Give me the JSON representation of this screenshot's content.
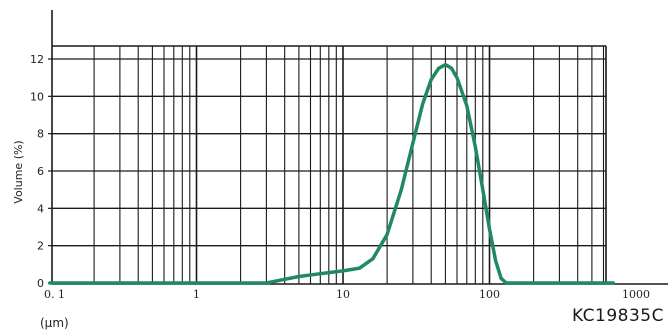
{
  "chart_data": {
    "type": "line",
    "title": "",
    "ylabel": "Volume (%)",
    "xunit": "(μm)",
    "annotation": "KC19835C",
    "x_scale": "log",
    "xlim": [
      0.1,
      1000
    ],
    "ylim": [
      0,
      12
    ],
    "grid": true,
    "line_color": "#1f8a5f",
    "axis_color": "#1a1a1a",
    "x_tick_labels": [
      {
        "value": 0.1,
        "label": "0. 1"
      },
      {
        "value": 1,
        "label": "1"
      },
      {
        "value": 10,
        "label": "10"
      },
      {
        "value": 100,
        "label": "100"
      },
      {
        "value": 1000,
        "label": "1000"
      }
    ],
    "y_ticks": [
      0,
      2,
      4,
      6,
      8,
      10,
      12
    ],
    "series": [
      {
        "x": [
          0.1,
          1,
          3,
          4,
          5,
          7,
          10,
          13,
          16,
          20,
          25,
          30,
          35,
          40,
          45,
          50,
          55,
          60,
          70,
          80,
          90,
          100,
          110,
          120,
          130,
          140,
          160,
          200,
          300,
          500,
          700
        ],
        "y": [
          0,
          0,
          0,
          0.2,
          0.35,
          0.5,
          0.65,
          0.8,
          1.3,
          2.6,
          5.0,
          7.5,
          9.6,
          10.9,
          11.5,
          11.7,
          11.5,
          11.0,
          9.5,
          7.3,
          5.0,
          2.9,
          1.2,
          0.25,
          0,
          0,
          0,
          0,
          0,
          0,
          0
        ]
      }
    ]
  }
}
